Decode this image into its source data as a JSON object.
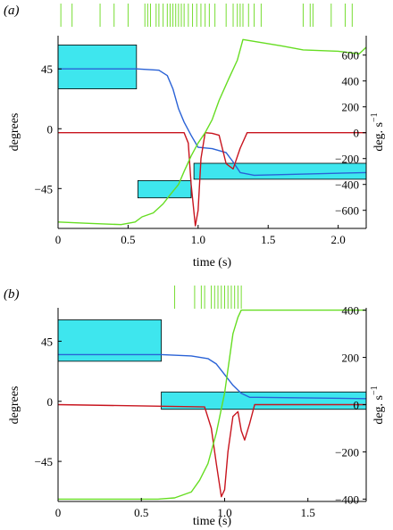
{
  "colors": {
    "box_fill": "#3ee6ee",
    "box_stroke": "#000000",
    "angle_line": "#2a62d6",
    "velocity_line": "#c8141e",
    "green_line": "#66dd22",
    "spike": "#77dd33"
  },
  "chart_data": [
    {
      "type": "line",
      "panel_label": "(a)",
      "xlabel": "time (s)",
      "ylabel_left": "degrees",
      "ylabel_right": "deg. s",
      "ylabel_right_exp": "−1",
      "xlim": [
        0,
        2.2
      ],
      "ylim_left": [
        -75,
        70
      ],
      "ylim_right": [
        -740,
        750
      ],
      "xticks": [
        0,
        0.5,
        1.0,
        1.5,
        2.0
      ],
      "xtick_labels": [
        "0",
        "0.5",
        "1.0",
        "1.5",
        "2.0"
      ],
      "yticks_left": [
        45,
        0,
        -45
      ],
      "ytick_labels_left": [
        "45",
        "0",
        "−45"
      ],
      "yticks_right": [
        600,
        400,
        200,
        0,
        -200,
        -400,
        -600
      ],
      "ytick_labels_right": [
        "600",
        "400",
        "200",
        "0",
        "−200",
        "−400",
        "−600"
      ],
      "grid": false,
      "boxes": [
        {
          "x0": 0.0,
          "x1": 0.56,
          "y0": 30,
          "y1": 63
        },
        {
          "x0": 0.57,
          "x1": 0.95,
          "y0": -52,
          "y1": -39
        },
        {
          "x0": 0.97,
          "x1": 2.2,
          "y0": -38,
          "y1": -26
        }
      ],
      "series": [
        {
          "role": "angle",
          "axis": "left",
          "x": [
            0,
            0.56,
            0.72,
            0.78,
            0.82,
            0.86,
            0.9,
            0.95,
            1.0,
            1.1,
            1.2,
            1.25,
            1.3,
            1.4,
            2.2
          ],
          "y": [
            45,
            45,
            44,
            40,
            30,
            15,
            5,
            -5,
            -14,
            -15,
            -18,
            -25,
            -33,
            -35,
            -33
          ]
        },
        {
          "role": "velocity",
          "axis": "right",
          "x": [
            0,
            0.9,
            0.93,
            0.95,
            0.98,
            1.0,
            1.02,
            1.05,
            1.1,
            1.15,
            1.2,
            1.25,
            1.3,
            1.35,
            2.2
          ],
          "y": [
            0,
            0,
            -80,
            -400,
            -720,
            -600,
            -200,
            0,
            -5,
            -20,
            -240,
            -280,
            -120,
            0,
            0
          ]
        },
        {
          "role": "green",
          "axis": "right",
          "x": [
            0,
            0.2,
            0.45,
            0.55,
            0.6,
            0.68,
            0.75,
            0.8,
            0.86,
            0.9,
            0.95,
            1.0,
            1.05,
            1.1,
            1.15,
            1.22,
            1.28,
            1.32,
            1.6,
            1.75,
            2.0,
            2.15,
            2.2
          ],
          "y": [
            -690,
            -700,
            -710,
            -690,
            -650,
            -620,
            -550,
            -480,
            -400,
            -300,
            -180,
            -80,
            0,
            100,
            250,
            420,
            560,
            720,
            670,
            640,
            630,
            610,
            660
          ]
        }
      ],
      "spike_times": [
        0.02,
        0.1,
        0.3,
        0.4,
        0.5,
        0.62,
        0.64,
        0.66,
        0.7,
        0.72,
        0.75,
        0.78,
        0.8,
        0.82,
        0.84,
        0.86,
        0.88,
        0.9,
        0.93,
        0.96,
        0.99,
        1.02,
        1.05,
        1.08,
        1.12,
        1.2,
        1.25,
        1.28,
        1.3,
        1.32,
        1.36,
        1.4,
        1.45,
        1.75,
        1.8,
        1.82,
        1.95,
        2.05,
        2.1
      ]
    },
    {
      "type": "line",
      "panel_label": "(b)",
      "xlabel": "time (s)",
      "ylabel_left": "degrees",
      "ylabel_right": "deg. s",
      "ylabel_right_exp": "−1",
      "xlim": [
        0,
        1.85
      ],
      "ylim_left": [
        -75,
        70
      ],
      "ylim_right": [
        -410,
        410
      ],
      "xticks": [
        0,
        0.5,
        1.0,
        1.5
      ],
      "xtick_labels": [
        "0",
        "0.5",
        "1.0",
        "1.5"
      ],
      "yticks_left": [
        45,
        0,
        -45
      ],
      "ytick_labels_left": [
        "45",
        "0",
        "−45"
      ],
      "yticks_right": [
        400,
        200,
        0,
        -200,
        -400
      ],
      "ytick_labels_right": [
        "400",
        "200",
        "0",
        "−200",
        "−400"
      ],
      "grid": false,
      "boxes": [
        {
          "x0": 0.0,
          "x1": 0.62,
          "y0": 30,
          "y1": 61
        },
        {
          "x0": 0.62,
          "x1": 1.85,
          "y0": -6,
          "y1": 7
        }
      ],
      "series": [
        {
          "role": "angle",
          "axis": "left",
          "x": [
            0,
            0.62,
            0.8,
            0.9,
            0.95,
            1.0,
            1.05,
            1.1,
            1.15,
            1.2,
            1.85
          ],
          "y": [
            35,
            35,
            34,
            32,
            28,
            20,
            12,
            6,
            3,
            3,
            2
          ]
        },
        {
          "role": "velocity",
          "axis": "right",
          "x": [
            0,
            0.88,
            0.92,
            0.95,
            0.98,
            1.0,
            1.02,
            1.05,
            1.08,
            1.1,
            1.12,
            1.15,
            1.18,
            1.85
          ],
          "y": [
            0,
            -10,
            -100,
            -250,
            -390,
            -360,
            -200,
            -50,
            -30,
            -110,
            -150,
            -80,
            0,
            0
          ]
        },
        {
          "role": "green",
          "axis": "right",
          "x": [
            0,
            0.6,
            0.7,
            0.8,
            0.85,
            0.9,
            0.95,
            1.0,
            1.03,
            1.05,
            1.08,
            1.1,
            1.85
          ],
          "y": [
            -400,
            -400,
            -395,
            -370,
            -320,
            -250,
            -120,
            50,
            200,
            300,
            370,
            400,
            400
          ]
        }
      ],
      "spike_times": [
        0.7,
        0.82,
        0.86,
        0.88,
        0.92,
        0.94,
        0.96,
        0.98,
        1.0,
        1.02,
        1.04,
        1.06,
        1.08,
        1.1
      ]
    }
  ]
}
